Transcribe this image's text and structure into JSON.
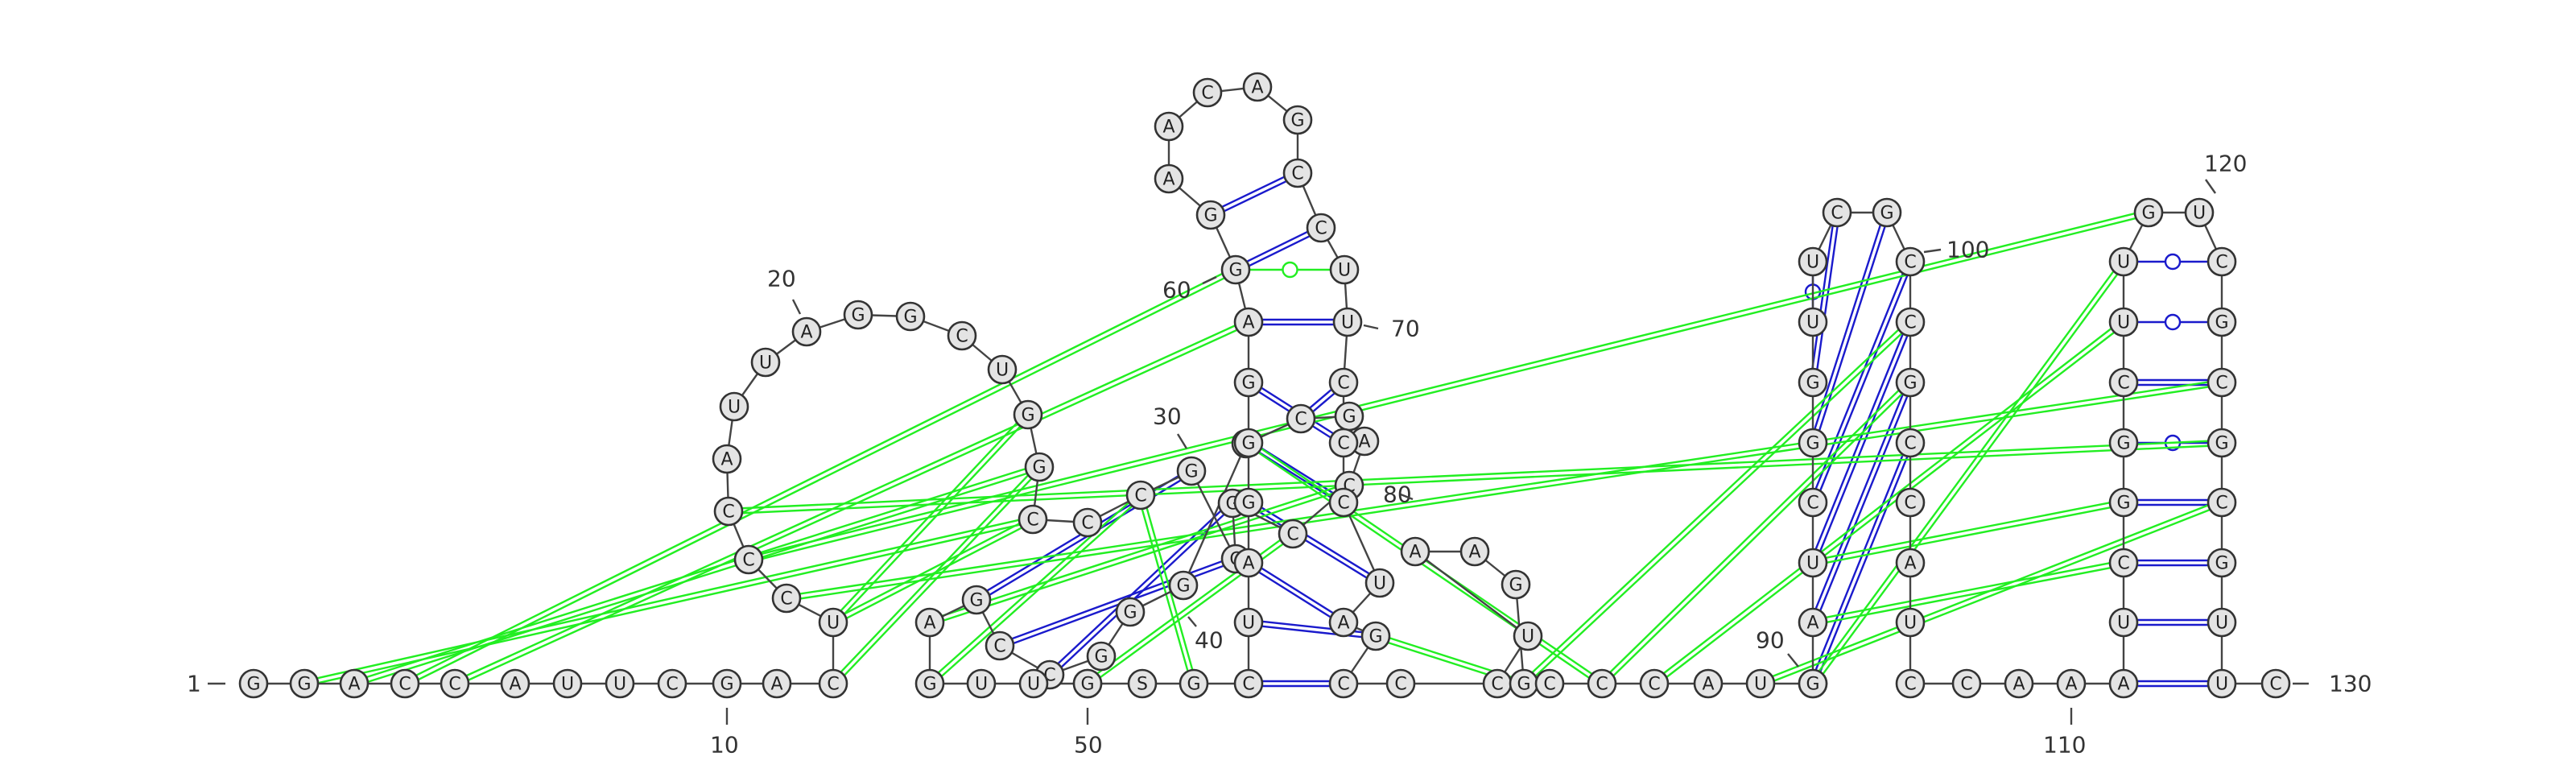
{
  "sequence_numbering_labels": [
    "1",
    "10",
    "20",
    "30",
    "40",
    "50",
    "60",
    "70",
    "80",
    "90",
    "100",
    "110",
    "120",
    "130"
  ],
  "colors": {
    "nucleotide_fill": "#e4e4e4",
    "nucleotide_stroke": "#333333",
    "canonical_pair": "#1a1acc",
    "pseudoknot_pair": "#22ee22"
  },
  "nucleotides": [
    {
      "label": "G",
      "pos": 1
    },
    {
      "label": "G",
      "pos": 2
    },
    {
      "label": "A",
      "pos": 3
    },
    {
      "label": "C",
      "pos": 4
    },
    {
      "label": "C",
      "pos": 5
    },
    {
      "label": "A",
      "pos": 6
    },
    {
      "label": "U",
      "pos": 7
    },
    {
      "label": "U",
      "pos": 8
    },
    {
      "label": "C",
      "pos": 9
    },
    {
      "label": "G",
      "pos": 10
    },
    {
      "label": "A",
      "pos": 11
    },
    {
      "label": "C",
      "pos": 12
    },
    {
      "label": "U",
      "pos": 13
    },
    {
      "label": "C",
      "pos": 14
    },
    {
      "label": "C",
      "pos": 15
    },
    {
      "label": "C",
      "pos": 16
    },
    {
      "label": "A",
      "pos": 17
    },
    {
      "label": "U",
      "pos": 18
    },
    {
      "label": "U",
      "pos": 19
    },
    {
      "label": "A",
      "pos": 20
    },
    {
      "label": "G",
      "pos": 21
    },
    {
      "label": "G",
      "pos": 22
    },
    {
      "label": "C",
      "pos": 23
    },
    {
      "label": "U",
      "pos": 24
    },
    {
      "label": "G",
      "pos": 25
    },
    {
      "label": "G",
      "pos": 26
    },
    {
      "label": "C",
      "pos": 27
    },
    {
      "label": "C",
      "pos": 28
    },
    {
      "label": "C",
      "pos": 29
    },
    {
      "label": "G",
      "pos": 30
    },
    {
      "label": "C",
      "pos": 31
    },
    {
      "label": "G",
      "pos": 32
    },
    {
      "label": "C",
      "pos": 33
    },
    {
      "label": "C",
      "pos": 34
    },
    {
      "label": "A",
      "pos": 35
    },
    {
      "label": "G",
      "pos": 36
    },
    {
      "label": "C",
      "pos": 37
    },
    {
      "label": "C",
      "pos": 38
    },
    {
      "label": "G",
      "pos": 39
    },
    {
      "label": "G",
      "pos": 40
    },
    {
      "label": "G",
      "pos": 41
    },
    {
      "label": "C",
      "pos": 42
    },
    {
      "label": "C",
      "pos": 43
    },
    {
      "label": "G",
      "pos": 44
    },
    {
      "label": "A",
      "pos": 45
    },
    {
      "label": "G",
      "pos": 46
    },
    {
      "label": "U",
      "pos": 47
    },
    {
      "label": "U",
      "pos": 48
    },
    {
      "label": "U",
      "pos": 49
    },
    {
      "label": "G",
      "pos": 50
    },
    {
      "label": "S",
      "pos": 51
    },
    {
      "label": "G",
      "pos": 52
    },
    {
      "label": "C",
      "pos": 53
    },
    {
      "label": "U",
      "pos": 54
    },
    {
      "label": "A",
      "pos": 55
    },
    {
      "label": "G",
      "pos": 56
    },
    {
      "label": "G",
      "pos": 57
    },
    {
      "label": "G",
      "pos": 58
    },
    {
      "label": "A",
      "pos": 59
    },
    {
      "label": "G",
      "pos": 60
    },
    {
      "label": "G",
      "pos": 61
    },
    {
      "label": "A",
      "pos": 62
    },
    {
      "label": "A",
      "pos": 63
    },
    {
      "label": "C",
      "pos": 64
    },
    {
      "label": "A",
      "pos": 65
    },
    {
      "label": "G",
      "pos": 66
    },
    {
      "label": "C",
      "pos": 67
    },
    {
      "label": "C",
      "pos": 68
    },
    {
      "label": "U",
      "pos": 69
    },
    {
      "label": "U",
      "pos": 70
    },
    {
      "label": "C",
      "pos": 71
    },
    {
      "label": "C",
      "pos": 72
    },
    {
      "label": "C",
      "pos": 73
    },
    {
      "label": "U",
      "pos": 74
    },
    {
      "label": "A",
      "pos": 75
    },
    {
      "label": "G",
      "pos": 76
    },
    {
      "label": "C",
      "pos": 77
    },
    {
      "label": "C",
      "pos": 78
    },
    {
      "label": "C",
      "pos": 79
    },
    {
      "label": "U",
      "pos": 80
    },
    {
      "label": "A",
      "pos": 81
    },
    {
      "label": "A",
      "pos": 82
    },
    {
      "label": "G",
      "pos": 83
    },
    {
      "label": "G",
      "pos": 84
    },
    {
      "label": "C",
      "pos": 85
    },
    {
      "label": "C",
      "pos": 86
    },
    {
      "label": "C",
      "pos": 87
    },
    {
      "label": "A",
      "pos": 88
    },
    {
      "label": "U",
      "pos": 89
    },
    {
      "label": "C",
      "pos": 90
    },
    {
      "label": "G",
      "pos": 91
    },
    {
      "label": "A",
      "pos": 92
    },
    {
      "label": "U",
      "pos": 93
    },
    {
      "label": "C",
      "pos": 94
    },
    {
      "label": "G",
      "pos": 95
    },
    {
      "label": "G",
      "pos": 96
    },
    {
      "label": "U",
      "pos": 97
    },
    {
      "label": "U",
      "pos": 98
    },
    {
      "label": "C",
      "pos": 99
    },
    {
      "label": "G",
      "pos": 100
    },
    {
      "label": "C",
      "pos": 101
    },
    {
      "label": "C",
      "pos": 102
    },
    {
      "label": "G",
      "pos": 103
    },
    {
      "label": "C",
      "pos": 104
    },
    {
      "label": "C",
      "pos": 105
    },
    {
      "label": "A",
      "pos": 106
    },
    {
      "label": "U",
      "pos": 107
    },
    {
      "label": "C",
      "pos": 108
    },
    {
      "label": "C",
      "pos": 109
    },
    {
      "label": "A",
      "pos": 110
    },
    {
      "label": "A",
      "pos": 111
    },
    {
      "label": "A",
      "pos": 112
    },
    {
      "label": "U",
      "pos": 113
    },
    {
      "label": "C",
      "pos": 114
    },
    {
      "label": "G",
      "pos": 115
    },
    {
      "label": "G",
      "pos": 116
    },
    {
      "label": "C",
      "pos": 117
    },
    {
      "label": "U",
      "pos": 118
    },
    {
      "label": "U",
      "pos": 119
    },
    {
      "label": "G",
      "pos": 120
    },
    {
      "label": "U",
      "pos": 121
    },
    {
      "label": "C",
      "pos": 122
    },
    {
      "label": "G",
      "pos": 123
    },
    {
      "label": "C",
      "pos": 124
    },
    {
      "label": "G",
      "pos": 125
    },
    {
      "label": "C",
      "pos": 126
    },
    {
      "label": "G",
      "pos": 127
    },
    {
      "label": "U",
      "pos": 128
    },
    {
      "label": "U",
      "pos": 129
    },
    {
      "label": "C",
      "pos": 130
    }
  ],
  "base_pairs": [
    {
      "i": 53,
      "j": 77,
      "type": "canonical"
    },
    {
      "i": 54,
      "j": 76,
      "type": "canonical"
    },
    {
      "i": 55,
      "j": 75,
      "type": "canonical"
    },
    {
      "i": 56,
      "j": 74,
      "type": "canonical"
    },
    {
      "i": 57,
      "j": 73,
      "type": "canonical"
    },
    {
      "i": 58,
      "j": 72,
      "type": "canonical"
    },
    {
      "i": 59,
      "j": 70,
      "type": "canonical"
    },
    {
      "i": 61,
      "j": 67,
      "type": "canonical"
    },
    {
      "i": 60,
      "j": 68,
      "type": "canonical"
    },
    {
      "i": 60,
      "j": 69,
      "type": "pseudoknot"
    },
    {
      "i": 31,
      "j": 43,
      "type": "canonical"
    },
    {
      "i": 32,
      "j": 42,
      "type": "canonical"
    },
    {
      "i": 30,
      "j": 44,
      "type": "canonical"
    },
    {
      "i": 36,
      "j": 72,
      "type": "canonical"
    },
    {
      "i": 37,
      "j": 71,
      "type": "canonical"
    },
    {
      "i": 91,
      "j": 104,
      "type": "canonical"
    },
    {
      "i": 92,
      "j": 103,
      "type": "canonical"
    },
    {
      "i": 93,
      "j": 102,
      "type": "canonical"
    },
    {
      "i": 94,
      "j": 101,
      "type": "canonical"
    },
    {
      "i": 95,
      "j": 100,
      "type": "canonical"
    },
    {
      "i": 96,
      "j": 99,
      "type": "canonical"
    },
    {
      "i": 97,
      "j": 98,
      "type": "canonical"
    },
    {
      "i": 112,
      "j": 129,
      "type": "canonical"
    },
    {
      "i": 113,
      "j": 128,
      "type": "canonical"
    },
    {
      "i": 114,
      "j": 127,
      "type": "canonical"
    },
    {
      "i": 115,
      "j": 126,
      "type": "canonical"
    },
    {
      "i": 116,
      "j": 125,
      "type": "canonical"
    },
    {
      "i": 117,
      "j": 124,
      "type": "canonical"
    },
    {
      "i": 118,
      "j": 123,
      "type": "canonical"
    },
    {
      "i": 119,
      "j": 122,
      "type": "canonical"
    },
    {
      "i": 2,
      "j": 27,
      "type": "pseudoknot"
    },
    {
      "i": 3,
      "j": 26,
      "type": "pseudoknot"
    },
    {
      "i": 4,
      "j": 60,
      "type": "pseudoknot"
    },
    {
      "i": 5,
      "j": 59,
      "type": "pseudoknot"
    },
    {
      "i": 12,
      "j": 26,
      "type": "pseudoknot"
    },
    {
      "i": 13,
      "j": 25,
      "type": "pseudoknot"
    },
    {
      "i": 13,
      "j": 27,
      "type": "pseudoknot"
    },
    {
      "i": 14,
      "j": 124,
      "type": "pseudoknot"
    },
    {
      "i": 15,
      "j": 120,
      "type": "pseudoknot"
    },
    {
      "i": 16,
      "j": 125,
      "type": "pseudoknot"
    },
    {
      "i": 45,
      "j": 34,
      "type": "pseudoknot"
    },
    {
      "i": 46,
      "j": 29,
      "type": "pseudoknot"
    },
    {
      "i": 49,
      "j": 33,
      "type": "pseudoknot"
    },
    {
      "i": 52,
      "j": 29,
      "type": "pseudoknot"
    },
    {
      "i": 57,
      "j": 86,
      "type": "pseudoknot"
    },
    {
      "i": 76,
      "j": 84,
      "type": "pseudoknot"
    },
    {
      "i": 84,
      "j": 102,
      "type": "pseudoknot"
    },
    {
      "i": 86,
      "j": 103,
      "type": "pseudoknot"
    },
    {
      "i": 87,
      "j": 118,
      "type": "pseudoknot"
    },
    {
      "i": 89,
      "j": 126,
      "type": "pseudoknot"
    },
    {
      "i": 91,
      "j": 119,
      "type": "pseudoknot"
    },
    {
      "i": 92,
      "j": 114,
      "type": "pseudoknot"
    },
    {
      "i": 93,
      "j": 115,
      "type": "pseudoknot"
    }
  ]
}
